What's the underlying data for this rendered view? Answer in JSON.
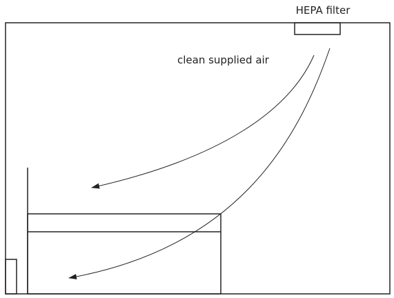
{
  "labels": {
    "filter": "HEPA filter",
    "airflow": "clean supplied air"
  }
}
